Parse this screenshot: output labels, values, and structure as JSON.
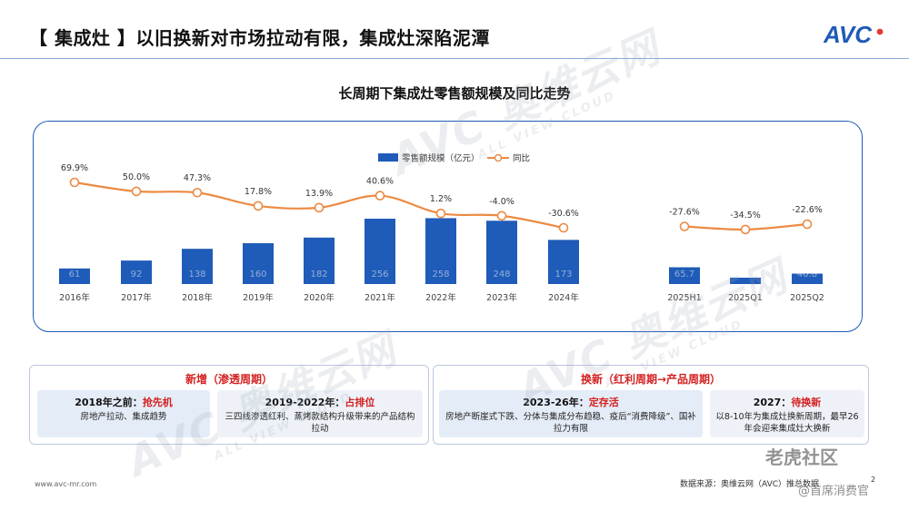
{
  "header": {
    "title": "【 集成灶 】以旧换新对市场拉动有限，集成灶深陷泥潭",
    "logo_text": "AVC"
  },
  "chart_data": {
    "type": "bar",
    "title": "长周期下集成灶零售额规模及同比走势",
    "categories": [
      "2016年",
      "2017年",
      "2018年",
      "2019年",
      "2020年",
      "2021年",
      "2022年",
      "2023年",
      "2024年",
      "2025H1",
      "2025Q1",
      "2025Q2"
    ],
    "series": [
      {
        "name": "零售额规模（亿元）",
        "type": "bar",
        "color": "#1f5bb8",
        "values": [
          61,
          92,
          138,
          160,
          182,
          256,
          258,
          248,
          173,
          65.7,
          24.9,
          40.8
        ],
        "labels": [
          "61",
          "92",
          "138",
          "160",
          "182",
          "256",
          "258",
          "248",
          "173",
          "65.7",
          "24.9",
          "40.8"
        ]
      },
      {
        "name": "同比",
        "type": "line",
        "color": "#ec8a43",
        "values": [
          69.9,
          50.0,
          47.3,
          17.8,
          13.9,
          40.6,
          1.2,
          -4.0,
          -30.6,
          -27.6,
          -34.5,
          -22.6
        ],
        "labels": [
          "69.9%",
          "50.0%",
          "47.3%",
          "17.8%",
          "13.9%",
          "40.6%",
          "1.2%",
          "-4.0%",
          "-30.6%",
          "-27.6%",
          "-34.5%",
          "-22.6%"
        ],
        "segments": [
          [
            0,
            8
          ],
          [
            9,
            11
          ]
        ]
      }
    ],
    "legend_position": "top-center",
    "grid": false
  },
  "panels": [
    {
      "title": "新增（渗透周期）",
      "cards": [
        {
          "head": "2018年之前：",
          "emphasis": "抢先机",
          "body": "房地产拉动、集成趋势"
        },
        {
          "head": "2019-2022年：",
          "emphasis": "占排位",
          "body": "三四线渗透红利、蒸烤款结构升级带来的产品结构拉动"
        }
      ]
    },
    {
      "title": "换新（红利周期→产品周期）",
      "cards": [
        {
          "head": "2023-26年：",
          "emphasis": "定存活",
          "body": "房地产断崖式下跌、分体与集成分布趋稳、疫后“消费降级”、国补拉力有限"
        },
        {
          "head": "2027：",
          "emphasis": "待换新",
          "body": "以8-10年为集成灶换新周期，最早26年会迎来集成灶大换新"
        }
      ]
    }
  ],
  "watermark": {
    "main": "AVC 奥维云网",
    "sub": "ALL VIEW CLOUD"
  },
  "footer": {
    "url": "www.avc-mr.com",
    "source": "数据来源：奥维云网（AVC）推总数据",
    "page": "2",
    "social_main": "老虎社区",
    "social_sub": "@首席消费官"
  },
  "colors": {
    "accent": "#1f5bb8",
    "line": "#ec8a43",
    "emphasis": "#d42020",
    "card_left": "#e4ecf7",
    "card_right": "#eef2f8"
  }
}
